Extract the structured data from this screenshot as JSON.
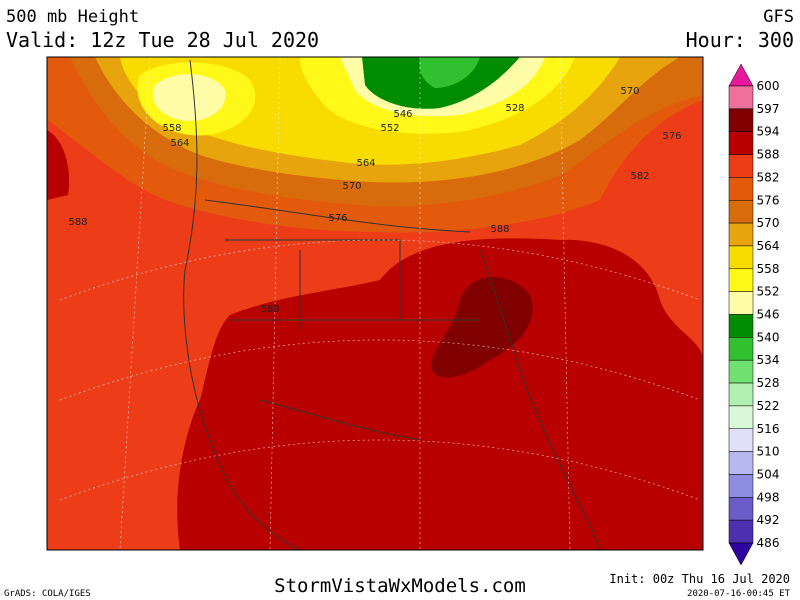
{
  "header": {
    "title": "500 mb Height",
    "model": "GFS",
    "valid": "Valid: 12z Tue 28 Jul 2020",
    "hour": "Hour: 300"
  },
  "contour_labels": [
    558,
    564,
    546,
    552,
    528,
    570,
    576,
    582,
    564,
    570,
    576,
    588,
    588,
    588
  ],
  "colorbar": {
    "levels": [
      600,
      597,
      594,
      588,
      582,
      576,
      570,
      564,
      558,
      552,
      546,
      540,
      534,
      528,
      522,
      516,
      510,
      504,
      498,
      492,
      486
    ],
    "colors": [
      "#e8189c",
      "#f0709c",
      "#800000",
      "#b80000",
      "#ec3c18",
      "#e45a0c",
      "#d86c0c",
      "#e8a40c",
      "#f8dc00",
      "#fff818",
      "#fffca8",
      "#008c00",
      "#30c030",
      "#70e070",
      "#b0f0b0",
      "#d8f8d8",
      "#e0e0f8",
      "#b8b8f0",
      "#8c8ce0",
      "#6c5cc8",
      "#4c30b0",
      "#3000a0"
    ]
  },
  "footer": {
    "site": "StormVistaWxModels.com",
    "init": "Init: 00z Thu 16 Jul 2020",
    "stamp": "2020-07-16-00:45 ET",
    "credit": "GrADS: COLA/IGES"
  }
}
